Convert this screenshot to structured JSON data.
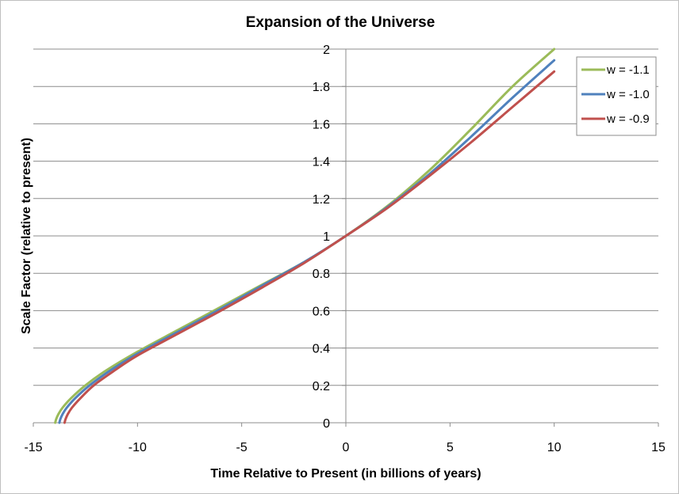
{
  "chart_data": {
    "type": "line",
    "title": "Expansion of the Universe",
    "xlabel": "Time Relative to Present (in billions of years)",
    "ylabel": "Scale Factor (relative to present)",
    "xlim": [
      -15,
      15
    ],
    "ylim": [
      0,
      2
    ],
    "xticks": [
      -15,
      -10,
      -5,
      0,
      5,
      10,
      15
    ],
    "yticks": [
      0,
      0.2,
      0.4,
      0.6,
      0.8,
      1,
      1.2,
      1.4,
      1.6,
      1.8,
      2
    ],
    "x_tick_labels": [
      "-15",
      "-10",
      "-5",
      "0",
      "5",
      "10",
      "15"
    ],
    "y_tick_labels": [
      "0",
      "0.2",
      "0.4",
      "0.6",
      "0.8",
      "1",
      "1.2",
      "1.4",
      "1.6",
      "1.8",
      "2"
    ],
    "grid": "horizontal",
    "legend_position": "top-right",
    "series": [
      {
        "name": "w = -1.1",
        "color": "#9bbb59",
        "x": [
          -13.95,
          -13.9,
          -13.8,
          -13.6,
          -13.2,
          -12.5,
          -11.5,
          -10,
          -8,
          -6,
          -4,
          -2,
          0,
          2,
          4,
          6,
          8,
          10
        ],
        "y": [
          0,
          0.02,
          0.045,
          0.08,
          0.13,
          0.2,
          0.28,
          0.38,
          0.5,
          0.62,
          0.74,
          0.86,
          1,
          1.16,
          1.35,
          1.57,
          1.8,
          2.0
        ]
      },
      {
        "name": "w = -1.0",
        "color": "#4f81bd",
        "x": [
          -13.75,
          -13.7,
          -13.6,
          -13.4,
          -13.0,
          -12.3,
          -11.3,
          -10,
          -8,
          -6,
          -4,
          -2,
          0,
          2,
          4,
          6,
          8,
          10
        ],
        "y": [
          0,
          0.02,
          0.045,
          0.08,
          0.13,
          0.2,
          0.28,
          0.37,
          0.49,
          0.61,
          0.735,
          0.86,
          1,
          1.155,
          1.33,
          1.53,
          1.74,
          1.94
        ]
      },
      {
        "name": "w = -0.9",
        "color": "#c0504d",
        "x": [
          -13.5,
          -13.45,
          -13.35,
          -13.15,
          -12.75,
          -12.1,
          -11.1,
          -10,
          -8,
          -6,
          -4,
          -2,
          0,
          2,
          4,
          6,
          8,
          10
        ],
        "y": [
          0,
          0.02,
          0.045,
          0.08,
          0.13,
          0.2,
          0.28,
          0.36,
          0.48,
          0.6,
          0.725,
          0.855,
          1,
          1.15,
          1.32,
          1.5,
          1.69,
          1.88
        ]
      }
    ]
  }
}
